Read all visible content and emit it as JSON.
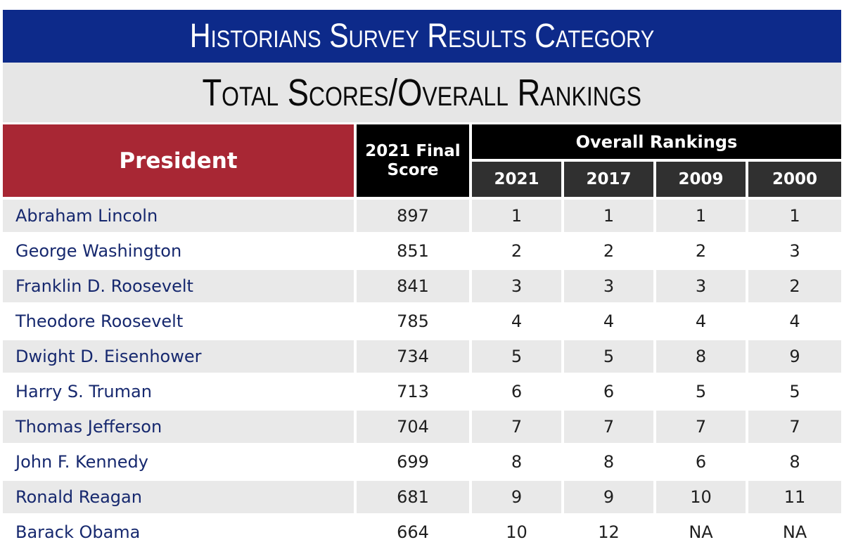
{
  "title": "Historians Survey Results Category",
  "subtitle": "Total Scores/Overall Rankings",
  "chart_data": {
    "type": "table",
    "headers": {
      "president": "President",
      "score_line1": "2021 Final",
      "score_line2": "Score",
      "overall": "Overall Rankings",
      "years": [
        "2021",
        "2017",
        "2009",
        "2000"
      ]
    },
    "rows": [
      {
        "name": "Abraham Lincoln",
        "score": "897",
        "ranks": [
          "1",
          "1",
          "1",
          "1"
        ]
      },
      {
        "name": "George Washington",
        "score": "851",
        "ranks": [
          "2",
          "2",
          "2",
          "3"
        ]
      },
      {
        "name": "Franklin D. Roosevelt",
        "score": "841",
        "ranks": [
          "3",
          "3",
          "3",
          "2"
        ]
      },
      {
        "name": "Theodore Roosevelt",
        "score": "785",
        "ranks": [
          "4",
          "4",
          "4",
          "4"
        ]
      },
      {
        "name": "Dwight D. Eisenhower",
        "score": "734",
        "ranks": [
          "5",
          "5",
          "8",
          "9"
        ]
      },
      {
        "name": "Harry S. Truman",
        "score": "713",
        "ranks": [
          "6",
          "6",
          "5",
          "5"
        ]
      },
      {
        "name": "Thomas Jefferson",
        "score": "704",
        "ranks": [
          "7",
          "7",
          "7",
          "7"
        ]
      },
      {
        "name": "John F. Kennedy",
        "score": "699",
        "ranks": [
          "8",
          "8",
          "6",
          "8"
        ]
      },
      {
        "name": "Ronald Reagan",
        "score": "681",
        "ranks": [
          "9",
          "9",
          "10",
          "11"
        ]
      },
      {
        "name": "Barack Obama",
        "score": "664",
        "ranks": [
          "10",
          "12",
          "NA",
          "NA"
        ]
      }
    ]
  },
  "colors": {
    "title_band": "#0d2a8a",
    "subtitle_band": "#e6e6e6",
    "president_header": "#a82734",
    "header_black": "#000000",
    "year_header": "#303030",
    "row_shade": "#e9e9e9",
    "name_text": "#16286e"
  }
}
